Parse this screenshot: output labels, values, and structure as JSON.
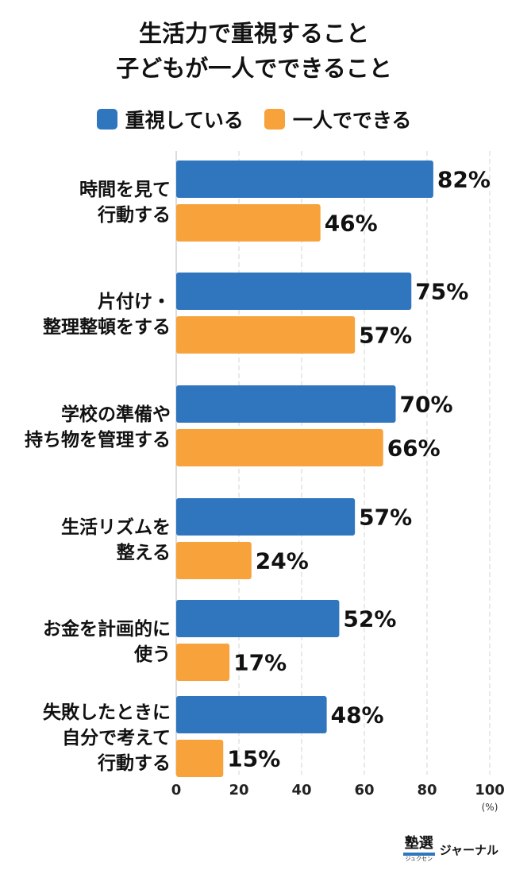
{
  "title": [
    "生活力で重視すること",
    "子どもが一人でできること"
  ],
  "legend": [
    {
      "label": "重視している",
      "color": "#2f76bf"
    },
    {
      "label": "一人でできる",
      "color": "#f7a23b"
    }
  ],
  "chart_data": {
    "type": "bar",
    "orientation": "horizontal",
    "categories": [
      [
        "時間を見て",
        "行動する"
      ],
      [
        "片付け・",
        "整理整頓をする"
      ],
      [
        "学校の準備や",
        "持ち物を管理する"
      ],
      [
        "生活リズムを",
        "整える"
      ],
      [
        "お金を計画的に",
        "使う"
      ],
      [
        "失敗したときに",
        "自分で考えて",
        "行動する"
      ]
    ],
    "series": [
      {
        "name": "重視している",
        "values": [
          82,
          75,
          70,
          57,
          52,
          48
        ],
        "color": "#2f76bf"
      },
      {
        "name": "一人でできる",
        "values": [
          46,
          57,
          66,
          24,
          17,
          15
        ],
        "color": "#f7a23b"
      }
    ],
    "value_suffix": "%",
    "xlim": [
      0,
      100
    ],
    "xticks": [
      0,
      20,
      40,
      60,
      80,
      100
    ],
    "xunit": "(%)",
    "grid": "vertical"
  },
  "footer": {
    "logo_kanji": "塾選",
    "logo_kana": "ジュクセン",
    "logo_text": "ジャーナル"
  }
}
